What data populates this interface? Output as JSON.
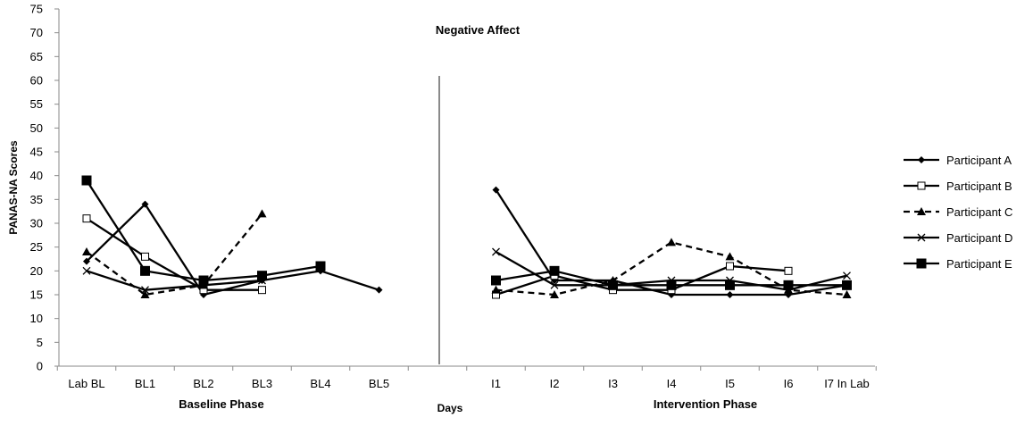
{
  "chart_data": {
    "type": "line",
    "title": "Negative Affect",
    "ylabel": "PANAS-NA Scores",
    "xlabel": "Days",
    "ylim": [
      0,
      75
    ],
    "yticks": [
      0,
      5,
      10,
      15,
      20,
      25,
      30,
      35,
      40,
      45,
      50,
      55,
      60,
      65,
      70,
      75
    ],
    "categories": [
      "Lab BL",
      "BL1",
      "BL2",
      "BL3",
      "BL4",
      "BL5",
      "",
      "I1",
      "I2",
      "I3",
      "I4",
      "I5",
      "I6",
      "I7 In Lab"
    ],
    "phases": [
      {
        "label": "Baseline Phase"
      },
      {
        "label": "Intervention Phase"
      }
    ],
    "grid": false,
    "legend_position": "right",
    "series": [
      {
        "name": "Participant A",
        "marker": "diamond",
        "dashed": false,
        "values": [
          22,
          34,
          15,
          18,
          20,
          16,
          null,
          37,
          18,
          18,
          15,
          15,
          15,
          17
        ]
      },
      {
        "name": "Participant B",
        "marker": "square-open",
        "dashed": false,
        "values": [
          31,
          23,
          16,
          16,
          null,
          null,
          null,
          15,
          19,
          16,
          16,
          21,
          20,
          null
        ]
      },
      {
        "name": "Participant C",
        "marker": "triangle",
        "dashed": true,
        "values": [
          24,
          15,
          17,
          32,
          null,
          null,
          null,
          16,
          15,
          18,
          26,
          23,
          16,
          15
        ]
      },
      {
        "name": "Participant D",
        "marker": "x",
        "dashed": false,
        "values": [
          20,
          16,
          17,
          18,
          null,
          null,
          null,
          24,
          17,
          17,
          18,
          18,
          16,
          19
        ]
      },
      {
        "name": "Participant E",
        "marker": "square-filled",
        "dashed": false,
        "values": [
          39,
          20,
          18,
          19,
          21,
          null,
          null,
          18,
          20,
          17,
          17,
          17,
          17,
          17
        ]
      }
    ]
  }
}
